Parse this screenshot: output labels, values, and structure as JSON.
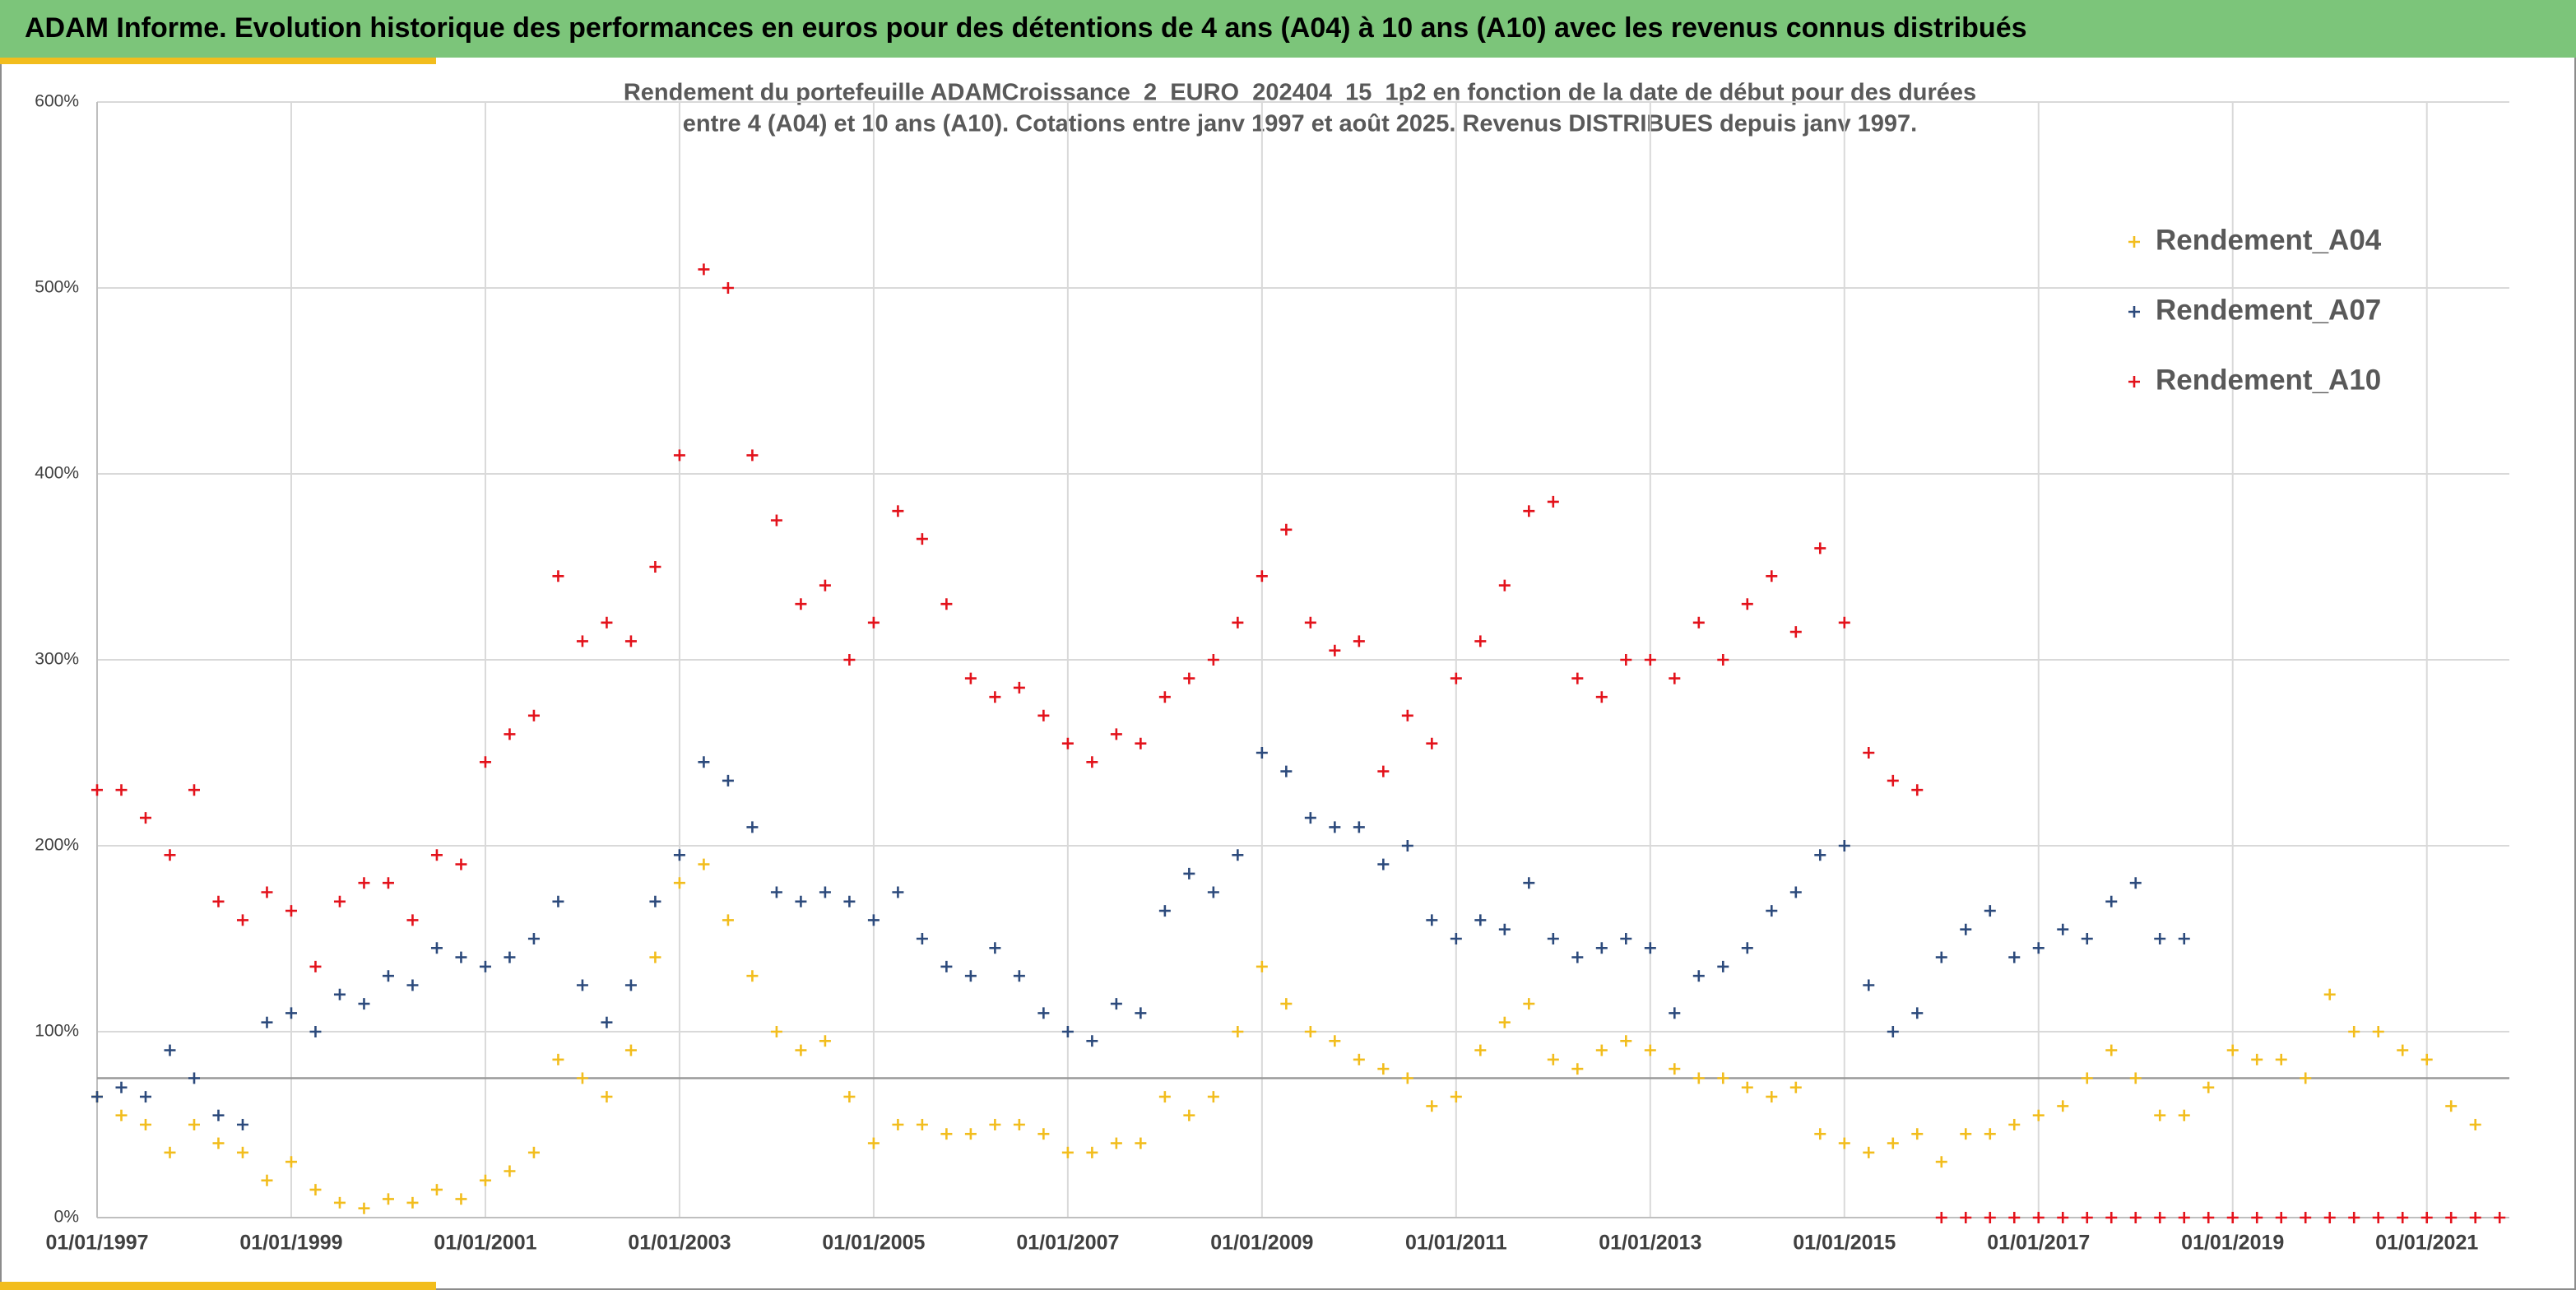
{
  "header": "ADAM Informe. Evolution historique des performances en euros pour des détentions de 4 ans (A04) à 10 ans (A10) avec les revenus connus distribués",
  "chart_data": {
    "type": "scatter",
    "title": [
      "Rendement du portefeuille ADAMCroissance_2_EURO_202404_15_1p2  en fonction de la date de début pour des durées",
      "entre 4 (A04) et 10 ans (A10). Cotations entre janv 1997 et août 2025. Revenus DISTRIBUES depuis janv 1997."
    ],
    "x": [
      1997,
      1997.25,
      1997.5,
      1997.75,
      1998,
      1998.25,
      1998.5,
      1998.75,
      1999,
      1999.25,
      1999.5,
      1999.75,
      2000,
      2000.25,
      2000.5,
      2000.75,
      2001,
      2001.25,
      2001.5,
      2001.75,
      2002,
      2002.25,
      2002.5,
      2002.75,
      2003,
      2003.25,
      2003.5,
      2003.75,
      2004,
      2004.25,
      2004.5,
      2004.75,
      2005,
      2005.25,
      2005.5,
      2005.75,
      2006,
      2006.25,
      2006.5,
      2006.75,
      2007,
      2007.25,
      2007.5,
      2007.75,
      2008,
      2008.25,
      2008.5,
      2008.75,
      2009,
      2009.25,
      2009.5,
      2009.75,
      2010,
      2010.25,
      2010.5,
      2010.75,
      2011,
      2011.25,
      2011.5,
      2011.75,
      2012,
      2012.25,
      2012.5,
      2012.75,
      2013,
      2013.25,
      2013.5,
      2013.75,
      2014,
      2014.25,
      2014.5,
      2014.75,
      2015,
      2015.25,
      2015.5,
      2015.75,
      2016,
      2016.25,
      2016.5,
      2016.75,
      2017,
      2017.25,
      2017.5,
      2017.75,
      2018,
      2018.25,
      2018.5,
      2018.75,
      2019,
      2019.25,
      2019.5,
      2019.75,
      2020,
      2020.25,
      2020.5,
      2020.75,
      2021,
      2021.25,
      2021.5,
      2021.75
    ],
    "series": [
      {
        "name": "Rendement_A04",
        "color": "#f2bd1d",
        "values": [
          65,
          55,
          50,
          35,
          50,
          40,
          35,
          20,
          30,
          15,
          8,
          5,
          10,
          8,
          15,
          10,
          20,
          25,
          35,
          85,
          75,
          65,
          90,
          140,
          180,
          190,
          160,
          130,
          100,
          90,
          95,
          65,
          40,
          50,
          50,
          45,
          45,
          50,
          50,
          45,
          35,
          35,
          40,
          40,
          65,
          55,
          65,
          100,
          135,
          115,
          100,
          95,
          85,
          80,
          75,
          60,
          65,
          90,
          105,
          115,
          85,
          80,
          90,
          95,
          90,
          80,
          75,
          75,
          70,
          65,
          70,
          45,
          40,
          35,
          40,
          45,
          30,
          45,
          45,
          50,
          55,
          60,
          75,
          90,
          75,
          55,
          55,
          70,
          90,
          85,
          85,
          75,
          120,
          100,
          100,
          90,
          85,
          60,
          50,
          null
        ]
      },
      {
        "name": "Rendement_A07",
        "color": "#2c4a7c",
        "values": [
          65,
          70,
          65,
          90,
          75,
          55,
          50,
          105,
          110,
          100,
          120,
          115,
          130,
          125,
          145,
          140,
          135,
          140,
          150,
          170,
          125,
          105,
          125,
          170,
          195,
          245,
          235,
          210,
          175,
          170,
          175,
          170,
          160,
          175,
          150,
          135,
          130,
          145,
          130,
          110,
          100,
          95,
          115,
          110,
          165,
          185,
          175,
          195,
          250,
          240,
          215,
          210,
          210,
          190,
          200,
          160,
          150,
          160,
          155,
          180,
          150,
          140,
          145,
          150,
          145,
          110,
          130,
          135,
          145,
          165,
          175,
          195,
          200,
          125,
          100,
          110,
          140,
          155,
          165,
          140,
          145,
          155,
          150,
          170,
          180,
          150,
          150,
          null,
          null,
          null,
          null,
          null,
          null,
          null,
          null,
          null,
          null,
          null,
          null,
          null
        ]
      },
      {
        "name": "Rendement_A10",
        "color": "#e3121b",
        "values": [
          230,
          230,
          215,
          195,
          230,
          170,
          160,
          175,
          165,
          135,
          170,
          180,
          180,
          160,
          195,
          190,
          245,
          260,
          270,
          345,
          310,
          320,
          310,
          350,
          410,
          510,
          500,
          410,
          375,
          330,
          340,
          300,
          320,
          380,
          365,
          330,
          290,
          280,
          285,
          270,
          255,
          245,
          260,
          255,
          280,
          290,
          300,
          320,
          345,
          370,
          320,
          305,
          310,
          240,
          270,
          255,
          290,
          310,
          340,
          380,
          385,
          290,
          280,
          300,
          300,
          290,
          320,
          300,
          330,
          345,
          315,
          360,
          320,
          250,
          235,
          230,
          0,
          0,
          0,
          0,
          0,
          0,
          0,
          0,
          0,
          0,
          0,
          0,
          0,
          0,
          0,
          0,
          0,
          0,
          0,
          0,
          0,
          0,
          0,
          0
        ]
      }
    ],
    "xlim": [
      1997,
      2021.85
    ],
    "xticks": [
      {
        "value": 1997,
        "label": "01/01/1997"
      },
      {
        "value": 1999,
        "label": "01/01/1999"
      },
      {
        "value": 2001,
        "label": "01/01/2001"
      },
      {
        "value": 2003,
        "label": "01/01/2003"
      },
      {
        "value": 2005,
        "label": "01/01/2005"
      },
      {
        "value": 2007,
        "label": "01/01/2007"
      },
      {
        "value": 2009,
        "label": "01/01/2009"
      },
      {
        "value": 2011,
        "label": "01/01/2011"
      },
      {
        "value": 2013,
        "label": "01/01/2013"
      },
      {
        "value": 2015,
        "label": "01/01/2015"
      },
      {
        "value": 2017,
        "label": "01/01/2017"
      },
      {
        "value": 2019,
        "label": "01/01/2019"
      },
      {
        "value": 2021,
        "label": "01/01/2021"
      }
    ],
    "ylim": [
      0,
      600
    ],
    "yticks": [
      {
        "value": 0,
        "label": "0%"
      },
      {
        "value": 100,
        "label": "100%"
      },
      {
        "value": 200,
        "label": "200%"
      },
      {
        "value": 300,
        "label": "300%"
      },
      {
        "value": 400,
        "label": "400%"
      },
      {
        "value": 500,
        "label": "500%"
      },
      {
        "value": 600,
        "label": "600%"
      }
    ],
    "reference_line": 75,
    "grid": true,
    "legend": "upper right"
  }
}
